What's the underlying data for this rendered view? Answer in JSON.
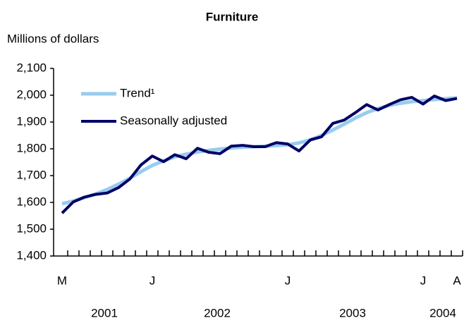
{
  "chart_data": {
    "type": "line",
    "title": "Furniture",
    "y_axis_label": "Millions of dollars",
    "categories": [
      "M",
      null,
      null,
      null,
      null,
      null,
      null,
      null,
      "J",
      null,
      null,
      null,
      null,
      null,
      null,
      null,
      null,
      null,
      null,
      null,
      "J",
      null,
      null,
      null,
      null,
      null,
      null,
      null,
      null,
      null,
      null,
      null,
      "J",
      null,
      null,
      "A"
    ],
    "years": [
      "2001",
      "2002",
      "2003",
      "2004"
    ],
    "series": [
      {
        "name": "Trend¹",
        "color": "#99ccee",
        "values": [
          1595,
          1605,
          1618,
          1632,
          1648,
          1668,
          1690,
          1715,
          1738,
          1755,
          1770,
          1780,
          1788,
          1794,
          1799,
          1803,
          1806,
          1808,
          1810,
          1812,
          1815,
          1822,
          1833,
          1850,
          1870,
          1892,
          1915,
          1935,
          1950,
          1962,
          1970,
          1976,
          1980,
          1984,
          1987,
          1990
        ]
      },
      {
        "name": "Seasonally adjusted",
        "color": "#000066",
        "values": [
          1560,
          1602,
          1620,
          1630,
          1635,
          1655,
          1687,
          1740,
          1773,
          1752,
          1778,
          1763,
          1802,
          1787,
          1782,
          1810,
          1813,
          1808,
          1808,
          1823,
          1818,
          1792,
          1833,
          1845,
          1895,
          1907,
          1935,
          1965,
          1945,
          1965,
          1983,
          1992,
          1967,
          1997,
          1980,
          1988
        ]
      }
    ],
    "ylim": [
      1400,
      2100
    ],
    "yticks": [
      {
        "value": 1400,
        "label": "1,400"
      },
      {
        "value": 1500,
        "label": "1,500"
      },
      {
        "value": 1600,
        "label": "1,600"
      },
      {
        "value": 1700,
        "label": "1,700"
      },
      {
        "value": 1800,
        "label": "1,800"
      },
      {
        "value": 1900,
        "label": "1,900"
      },
      {
        "value": 2000,
        "label": "2,000"
      },
      {
        "value": 2100,
        "label": "2,100"
      }
    ],
    "legend": "upper left"
  }
}
